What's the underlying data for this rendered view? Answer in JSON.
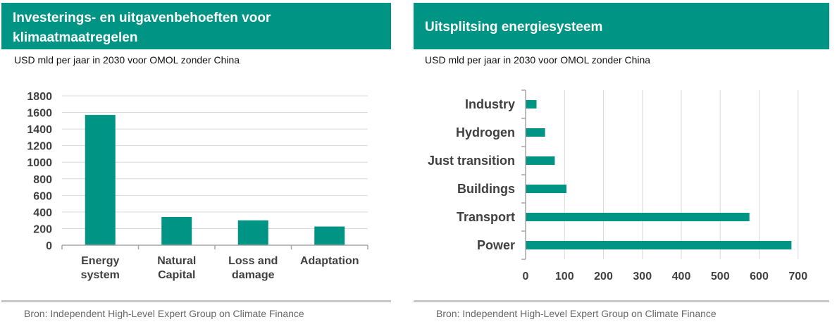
{
  "charts": [
    {
      "header": "Investerings- en uitgavenbehoeften voor klimaatmaatregelen",
      "subtitle": "USD mld per jaar in 2030 voor OMOL zonder China",
      "source": "Bron: Independent High-Level Expert Group on Climate Finance"
    },
    {
      "header": "Uitsplitsing energiesysteem",
      "subtitle": "USD mld per jaar in 2030 voor OMOL zonder China",
      "source": "Bron: Independent High-Level Expert Group on Climate Finance"
    }
  ],
  "chart_data": [
    {
      "type": "bar",
      "title": "Investerings- en uitgavenbehoeften voor klimaatmaatregelen",
      "ylabel": "USD mld per jaar in 2030 voor OMOL zonder China",
      "categories": [
        [
          "Energy",
          "system"
        ],
        [
          "Natural",
          "Capital"
        ],
        [
          "Loss and",
          "damage"
        ],
        [
          "Adaptation"
        ]
      ],
      "values": [
        1570,
        340,
        300,
        225
      ],
      "ylim": [
        0,
        1800
      ],
      "yticks": [
        "0",
        "200",
        "400",
        "600",
        "800",
        "1000",
        "1200",
        "1400",
        "1600",
        "1800"
      ],
      "grid": true,
      "color": "#009484"
    },
    {
      "type": "bar",
      "orientation": "horizontal",
      "title": "Uitsplitsing energiesysteem",
      "xlabel": "USD mld per jaar in 2030 voor OMOL zonder China",
      "categories": [
        "Industry",
        "Hydrogen",
        "Just transition",
        "Buildings",
        "Transport",
        "Power"
      ],
      "values": [
        28,
        50,
        75,
        105,
        575,
        683
      ],
      "xlim": [
        0,
        700
      ],
      "xticks": [
        "0",
        "100",
        "200",
        "300",
        "400",
        "500",
        "600",
        "700"
      ],
      "grid": true,
      "color": "#009484"
    }
  ]
}
